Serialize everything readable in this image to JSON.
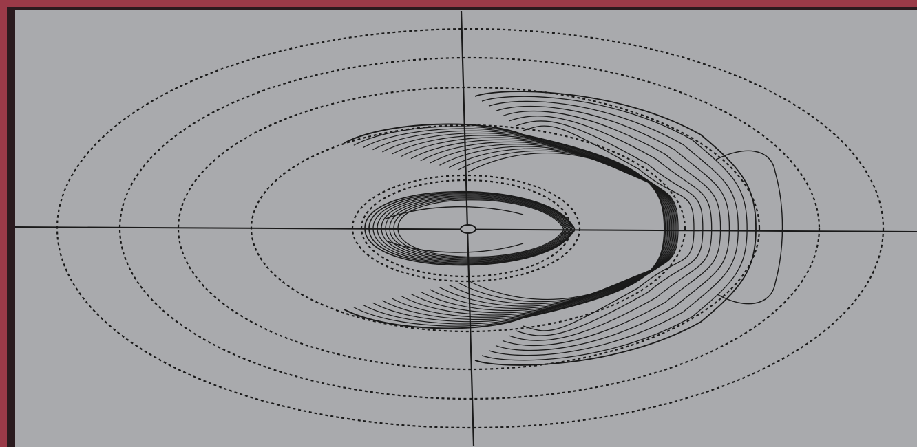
{
  "figure": {
    "background_color": "#a9aaad",
    "frame_color": "#9a3a48",
    "line_color": "#1a1a1a",
    "dashed_boundaries": 6,
    "solid_contour_families": [
      "inner-lobe",
      "crescent",
      "outer-lobe"
    ],
    "axes": {
      "horizontal_line": true,
      "vertical_line": true,
      "center_marker": "small-circle"
    }
  }
}
